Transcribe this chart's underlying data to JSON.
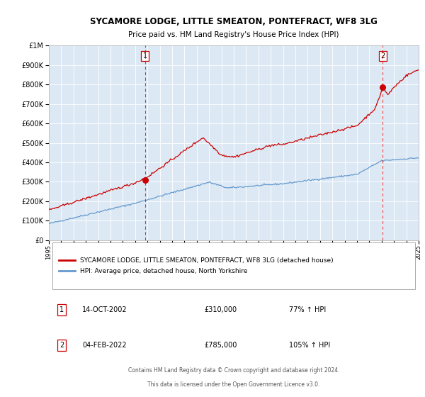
{
  "title": "SYCAMORE LODGE, LITTLE SMEATON, PONTEFRACT, WF8 3LG",
  "subtitle": "Price paid vs. HM Land Registry's House Price Index (HPI)",
  "plot_bg_color": "#dce9f5",
  "red_line_color": "#cc0000",
  "blue_line_color": "#6699cc",
  "vline_color": "#cc0000",
  "legend_label_red": "SYCAMORE LODGE, LITTLE SMEATON, PONTEFRACT, WF8 3LG (detached house)",
  "legend_label_blue": "HPI: Average price, detached house, North Yorkshire",
  "annotation1_date": "14-OCT-2002",
  "annotation1_price": "£310,000",
  "annotation1_hpi": "77% ↑ HPI",
  "annotation2_date": "04-FEB-2022",
  "annotation2_price": "£785,000",
  "annotation2_hpi": "105% ↑ HPI",
  "sale1_x": 2002.79,
  "sale1_y": 310000,
  "sale2_x": 2022.09,
  "sale2_y": 785000,
  "ylim": [
    0,
    1000000
  ],
  "xlim": [
    1995,
    2025
  ],
  "footer_line1": "Contains HM Land Registry data © Crown copyright and database right 2024.",
  "footer_line2": "This data is licensed under the Open Government Licence v3.0.",
  "yticks": [
    0,
    100000,
    200000,
    300000,
    400000,
    500000,
    600000,
    700000,
    800000,
    900000,
    1000000
  ],
  "ytick_labels": [
    "£0",
    "£100K",
    "£200K",
    "£300K",
    "£400K",
    "£500K",
    "£600K",
    "£700K",
    "£800K",
    "£900K",
    "£1M"
  ],
  "box1_label": "1",
  "box2_label": "2",
  "num_box_color": "#cc0000"
}
